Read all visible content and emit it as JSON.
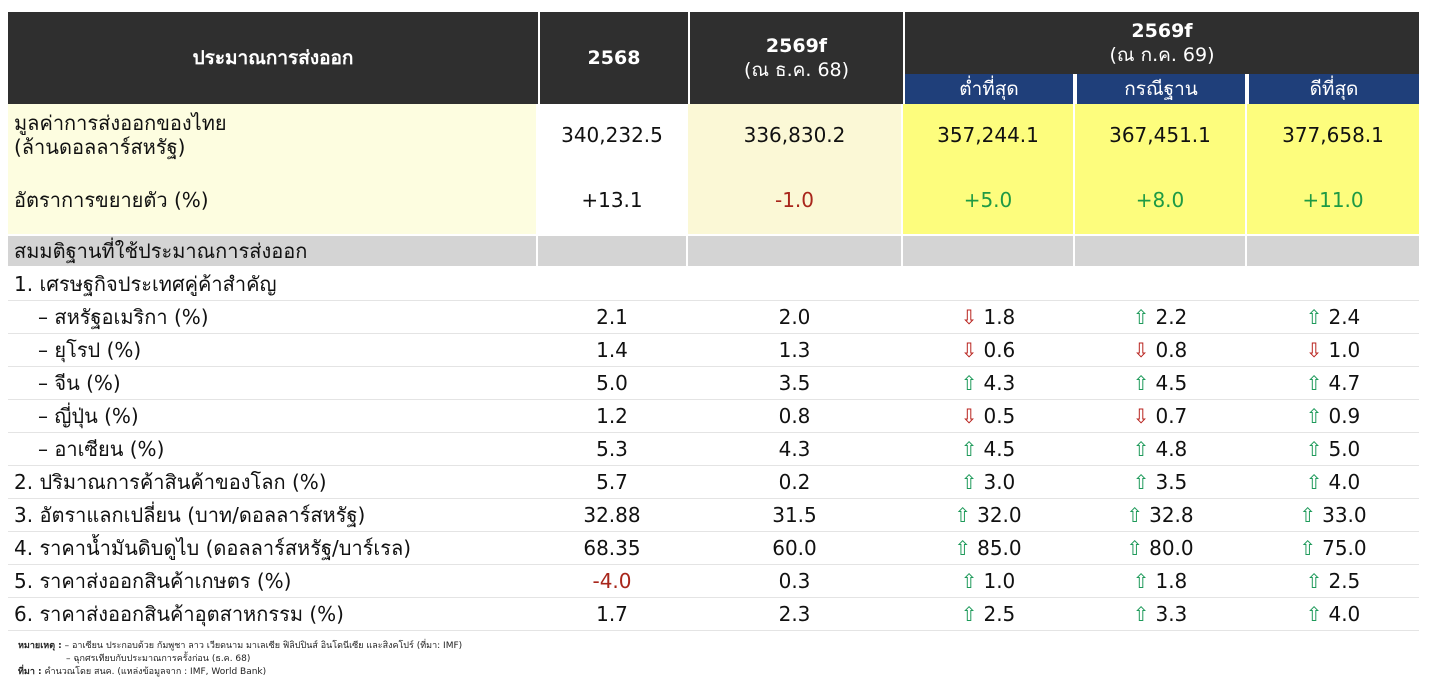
{
  "header": {
    "col0": "ประมาณการส่งออก",
    "col1": "2568",
    "col2_line1": "2569f",
    "col2_line2": "(ณ ธ.ค. 68)",
    "group_line1": "2569f",
    "group_line2": "(ณ ก.ค. 69)",
    "sub_low": "ต่ำที่สุด",
    "sub_base": "กรณีฐาน",
    "sub_high": "ดีที่สุด"
  },
  "export_value": {
    "label_line1": "มูลค่าการส่งออกของไทย",
    "label_line2": "(ล้านดอลลาร์สหรัฐ)",
    "v2568": "340,232.5",
    "v2569_dec": "336,830.2",
    "low": "357,244.1",
    "base": "367,451.1",
    "high": "377,658.1"
  },
  "growth": {
    "label": "อัตราการขยายตัว (%)",
    "v2568": "+13.1",
    "v2569_dec": "-1.0",
    "low": "+5.0",
    "base": "+8.0",
    "high": "+11.0"
  },
  "assumptions_title": "สมมติฐานที่ใช้ประมาณการส่งออก",
  "section1_title": "1. เศรษฐกิจประเทศคู่ค้าสำคัญ",
  "rows": [
    {
      "label": "– สหรัฐอเมริกา (%)",
      "v2568": "2.1",
      "v2569_dec": "2.0",
      "low": "1.8",
      "low_dir": "down",
      "base": "2.2",
      "base_dir": "up",
      "high": "2.4",
      "high_dir": "up"
    },
    {
      "label": "– ยุโรป (%)",
      "v2568": "1.4",
      "v2569_dec": "1.3",
      "low": "0.6",
      "low_dir": "down",
      "base": "0.8",
      "base_dir": "down",
      "high": "1.0",
      "high_dir": "down"
    },
    {
      "label": "– จีน (%)",
      "v2568": "5.0",
      "v2569_dec": "3.5",
      "low": "4.3",
      "low_dir": "up",
      "base": "4.5",
      "base_dir": "up",
      "high": "4.7",
      "high_dir": "up"
    },
    {
      "label": "– ญี่ปุ่น (%)",
      "v2568": "1.2",
      "v2569_dec": "0.8",
      "low": "0.5",
      "low_dir": "down",
      "base": "0.7",
      "base_dir": "down",
      "high": "0.9",
      "high_dir": "up"
    },
    {
      "label": "– อาเซียน (%)",
      "v2568": "5.3",
      "v2569_dec": "4.3",
      "low": "4.5",
      "low_dir": "up",
      "base": "4.8",
      "base_dir": "up",
      "high": "5.0",
      "high_dir": "up"
    },
    {
      "label": "2. ปริมาณการค้าสินค้าของโลก (%)",
      "v2568": "5.7",
      "v2569_dec": "0.2",
      "low": "3.0",
      "low_dir": "up",
      "base": "3.5",
      "base_dir": "up",
      "high": "4.0",
      "high_dir": "up"
    },
    {
      "label": "3. อัตราแลกเปลี่ยน (บาท/ดอลลาร์สหรัฐ)",
      "v2568": "32.88",
      "v2569_dec": "31.5",
      "low": "32.0",
      "low_dir": "up",
      "base": "32.8",
      "base_dir": "up",
      "high": "33.0",
      "high_dir": "up"
    },
    {
      "label": "4. ราคาน้ำมันดิบดูไบ (ดอลลาร์สหรัฐ/บาร์เรล)",
      "v2568": "68.35",
      "v2569_dec": "60.0",
      "low": "85.0",
      "low_dir": "up",
      "base": "80.0",
      "base_dir": "up",
      "high": "75.0",
      "high_dir": "up"
    },
    {
      "label": "5. ราคาส่งออกสินค้าเกษตร (%)",
      "v2568": "-4.0",
      "v2569_dec": "0.3",
      "low": "1.0",
      "low_dir": "up",
      "base": "1.8",
      "base_dir": "up",
      "high": "2.5",
      "high_dir": "up"
    },
    {
      "label": "6. ราคาส่งออกสินค้าอุตสาหกรรม (%)",
      "v2568": "1.7",
      "v2569_dec": "2.3",
      "low": "2.5",
      "low_dir": "up",
      "base": "3.3",
      "base_dir": "up",
      "high": "4.0",
      "high_dir": "up"
    }
  ],
  "notes": {
    "note_label": "หมายเหตุ :",
    "note1": "– อาเซียน ประกอบด้วย กัมพูชา ลาว เวียดนาม มาเลเซีย ฟิลิปปินส์ อินโดนีเซีย และสิงคโปร์ (ที่มา: IMF)",
    "note2": "– ฉุกศรเทียบกับประมาณการครั้งก่อน (ธ.ค. 68)",
    "source_label": "ที่มา :",
    "source": "คำนวณโดย สนค. (แหล่งข้อมูลจาก : IMF, World Bank)"
  },
  "colors": {
    "header_bg": "#2f2f2f",
    "subheader_bg": "#1f3f7a",
    "scenario_bg": "#fdfd7d",
    "section_bg": "#d4d4d4",
    "negative": "#a8261b",
    "positive": "#1e9a44",
    "arrow_up": "#1e9a5a",
    "arrow_down": "#b8221d"
  },
  "icons": {
    "up": "up-arrow-icon",
    "down": "down-arrow-icon"
  }
}
